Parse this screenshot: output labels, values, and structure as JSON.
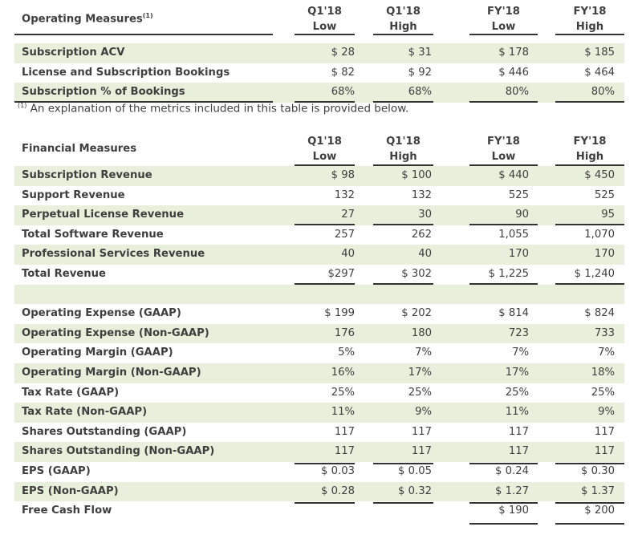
{
  "operating": {
    "title": "Operating Measures",
    "title_sup": "(1)",
    "columns": [
      [
        "Q1'18",
        "Low"
      ],
      [
        "Q1'18",
        "High"
      ],
      [
        "FY'18",
        "Low"
      ],
      [
        "FY'18",
        "High"
      ]
    ],
    "rows": [
      {
        "label": "Subscription ACV",
        "values": [
          "$ 28",
          "$ 31",
          "$ 178",
          "$ 185"
        ]
      },
      {
        "label": "License and Subscription Bookings",
        "values": [
          "$ 82",
          "$ 92",
          "$ 446",
          "$ 464"
        ]
      },
      {
        "label": "Subscription % of Bookings",
        "values": [
          "68%",
          "68%",
          "80%",
          "80%"
        ]
      }
    ],
    "footnote_mark": "(1)",
    "footnote": " An explanation of the metrics included in this table is provided below."
  },
  "financial": {
    "title": "Financial Measures",
    "columns": [
      [
        "Q1'18",
        "Low"
      ],
      [
        "Q1'18",
        "High"
      ],
      [
        "FY'18",
        "Low"
      ],
      [
        "FY'18",
        "High"
      ]
    ],
    "rows": [
      {
        "label": "Subscription Revenue",
        "values": [
          "$ 98",
          "$ 100",
          "$ 440",
          "$ 450"
        ]
      },
      {
        "label": "Support Revenue",
        "values": [
          "132",
          "132",
          "525",
          "525"
        ]
      },
      {
        "label": "Perpetual License Revenue",
        "values": [
          "27",
          "30",
          "90",
          "95"
        ]
      },
      {
        "label": "Total Software Revenue",
        "values": [
          "257",
          "262",
          "1,055",
          "1,070"
        ]
      },
      {
        "label": "Professional Services Revenue",
        "values": [
          "40",
          "40",
          "170",
          "170"
        ]
      },
      {
        "label": "Total Revenue",
        "values": [
          "$297",
          "$ 302",
          "$ 1,225",
          "$ 1,240"
        ]
      },
      {
        "label": "",
        "values": [
          "",
          "",
          "",
          ""
        ]
      },
      {
        "label": "Operating Expense (GAAP)",
        "values": [
          "$ 199",
          "$ 202",
          "$ 814",
          "$ 824"
        ]
      },
      {
        "label": "Operating Expense (Non-GAAP)",
        "values": [
          "176",
          "180",
          "723",
          "733"
        ]
      },
      {
        "label": "Operating Margin (GAAP)",
        "values": [
          "5%",
          "7%",
          "7%",
          "7%"
        ]
      },
      {
        "label": "Operating Margin (Non-GAAP)",
        "values": [
          "16%",
          "17%",
          "17%",
          "18%"
        ]
      },
      {
        "label": "Tax Rate (GAAP)",
        "values": [
          "25%",
          "25%",
          "25%",
          "25%"
        ]
      },
      {
        "label": "Tax Rate (Non-GAAP)",
        "values": [
          "11%",
          "9%",
          "11%",
          "9%"
        ]
      },
      {
        "label": "Shares Outstanding (GAAP)",
        "values": [
          "117",
          "117",
          "117",
          "117"
        ]
      },
      {
        "label": "Shares Outstanding (Non-GAAP)",
        "values": [
          "117",
          "117",
          "117",
          "117"
        ]
      },
      {
        "label": "EPS (GAAP)",
        "values": [
          "$ 0.03",
          "$ 0.05",
          "$ 0.24",
          "$ 0.30"
        ]
      },
      {
        "label": "EPS (Non-GAAP)",
        "values": [
          "$ 0.28",
          "$ 0.32",
          "$ 1.27",
          "$ 1.37"
        ]
      },
      {
        "label": "Free Cash Flow",
        "values": [
          "",
          "",
          "$ 190",
          "$ 200"
        ]
      }
    ]
  }
}
